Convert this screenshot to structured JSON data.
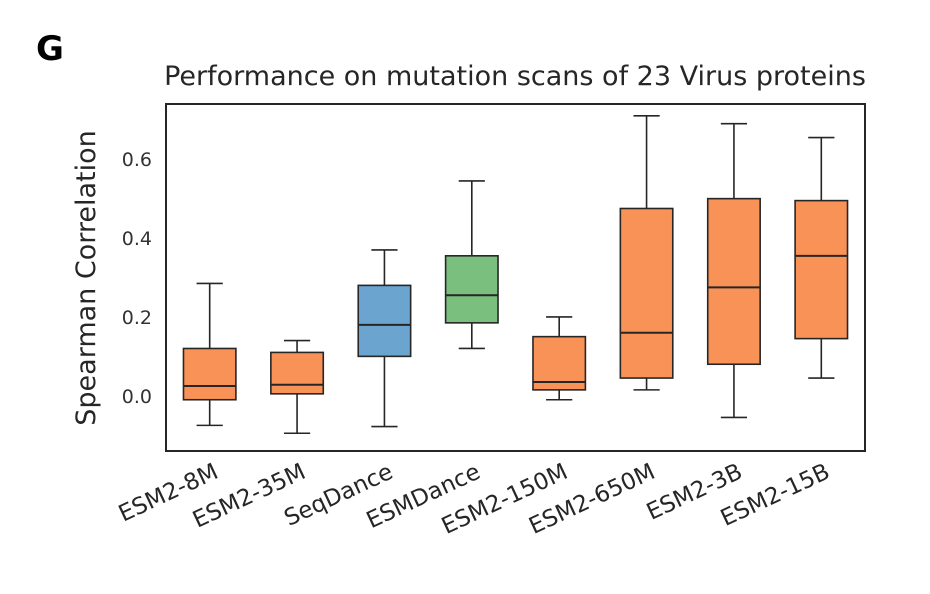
{
  "panel_label": "G",
  "colors": {
    "orange": "#f89256",
    "blue": "#6ba4cf",
    "green": "#7bbf7f",
    "outline": "#262626",
    "frame": "#262626"
  },
  "chart_data": {
    "type": "boxplot",
    "title": "Performance on mutation scans of 23 Virus proteins",
    "xlabel": "",
    "ylabel": "Spearman Correlation",
    "ylim": [
      -0.14,
      0.74
    ],
    "yticks": [
      0.0,
      0.2,
      0.4,
      0.6
    ],
    "ytick_labels": [
      "0.0",
      "0.2",
      "0.4",
      "0.6"
    ],
    "grid": false,
    "categories": [
      "ESM2-8M",
      "ESM2-35M",
      "SeqDance",
      "ESMDance",
      "ESM2-150M",
      "ESM2-650M",
      "ESM2-3B",
      "ESM2-15B"
    ],
    "boxes": [
      {
        "name": "ESM2-8M",
        "whisker_low": -0.075,
        "q1": -0.01,
        "median": 0.025,
        "q3": 0.12,
        "whisker_high": 0.285,
        "color": "orange"
      },
      {
        "name": "ESM2-35M",
        "whisker_low": -0.095,
        "q1": 0.005,
        "median": 0.028,
        "q3": 0.11,
        "whisker_high": 0.14,
        "color": "orange"
      },
      {
        "name": "SeqDance",
        "whisker_low": -0.078,
        "q1": 0.1,
        "median": 0.18,
        "q3": 0.28,
        "whisker_high": 0.37,
        "color": "blue"
      },
      {
        "name": "ESMDance",
        "whisker_low": 0.12,
        "q1": 0.185,
        "median": 0.255,
        "q3": 0.355,
        "whisker_high": 0.545,
        "color": "green"
      },
      {
        "name": "ESM2-150M",
        "whisker_low": -0.01,
        "q1": 0.015,
        "median": 0.035,
        "q3": 0.15,
        "whisker_high": 0.2,
        "color": "orange"
      },
      {
        "name": "ESM2-650M",
        "whisker_low": 0.015,
        "q1": 0.045,
        "median": 0.16,
        "q3": 0.475,
        "whisker_high": 0.71,
        "color": "orange"
      },
      {
        "name": "ESM2-3B",
        "whisker_low": -0.055,
        "q1": 0.08,
        "median": 0.275,
        "q3": 0.5,
        "whisker_high": 0.69,
        "color": "orange"
      },
      {
        "name": "ESM2-15B",
        "whisker_low": 0.045,
        "q1": 0.145,
        "median": 0.355,
        "q3": 0.495,
        "whisker_high": 0.655,
        "color": "orange"
      }
    ]
  }
}
